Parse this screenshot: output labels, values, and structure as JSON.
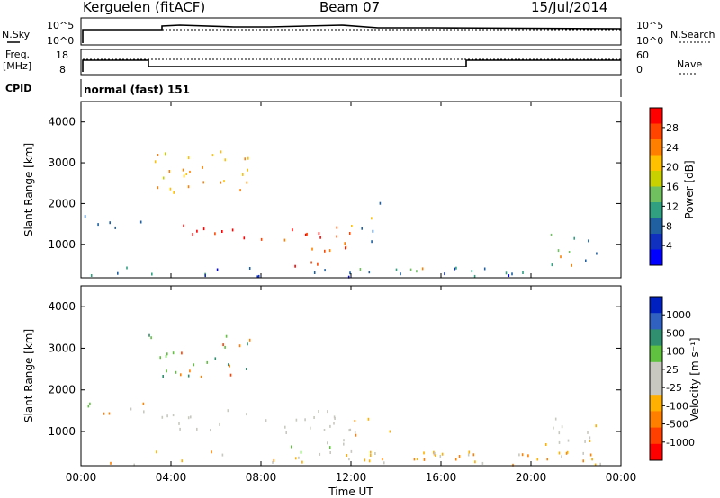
{
  "header": {
    "site": "Kerguelen (fitACF)",
    "beam": "Beam 07",
    "date": "15/Jul/2014"
  },
  "status_panels": {
    "nsky_label": "N.Sky",
    "nsky_ticks": [
      "10^5",
      "10^0"
    ],
    "nsearch_label": "N.Search",
    "nsearch_ticks": [
      "10^5",
      "10^0"
    ],
    "freq_label_1": "Freq.",
    "freq_label_2": "[MHz]",
    "freq_ticks": [
      "18",
      "8"
    ],
    "nave_label": "Nave",
    "nave_ticks": [
      "60",
      "0"
    ],
    "cpid_label": "CPID",
    "cpid_text": "normal (fast) 151"
  },
  "chart_data": [
    {
      "type": "heatmap",
      "name": "power",
      "ylabel": "Slant Range [km]",
      "y_ticks": [
        "4000",
        "3000",
        "2000",
        "1000"
      ],
      "y_tick_values": [
        4000,
        3000,
        2000,
        1000
      ],
      "ylim": [
        180,
        4500
      ],
      "xlim_hours": [
        0,
        24
      ],
      "colorbar": {
        "label": "Power [dB]",
        "ticks": [
          "28",
          "24",
          "20",
          "16",
          "12",
          "8",
          "4"
        ],
        "colors": [
          "#ff0000",
          "#ff4400",
          "#ff8000",
          "#ffc000",
          "#c8d000",
          "#70c060",
          "#30a080",
          "#2060a0",
          "#1030c0",
          "#0000ff"
        ]
      }
    },
    {
      "type": "heatmap",
      "name": "velocity",
      "ylabel": "Slant Range [km]",
      "y_ticks": [
        "4000",
        "3000",
        "2000",
        "1000"
      ],
      "y_tick_values": [
        4000,
        3000,
        2000,
        1000
      ],
      "ylim": [
        180,
        4500
      ],
      "xlim_hours": [
        0,
        24
      ],
      "xlabel": "Time UT",
      "x_ticks": [
        "00:00",
        "04:00",
        "08:00",
        "12:00",
        "16:00",
        "20:00",
        "00:00"
      ],
      "x_tick_hours": [
        0,
        4,
        8,
        12,
        16,
        20,
        24
      ],
      "colorbar": {
        "label": "Velocity [m s⁻¹]",
        "ticks": [
          "1000",
          "500",
          "100",
          "25",
          "-25",
          "-100",
          "-500",
          "-1000"
        ],
        "colors": [
          "#0020c0",
          "#3060c0",
          "#2f8f6f",
          "#60c040",
          "#c8c8c0",
          "#c8c8c0",
          "#ffb000",
          "#ff8000",
          "#ff4000",
          "#ff0000"
        ]
      }
    }
  ]
}
